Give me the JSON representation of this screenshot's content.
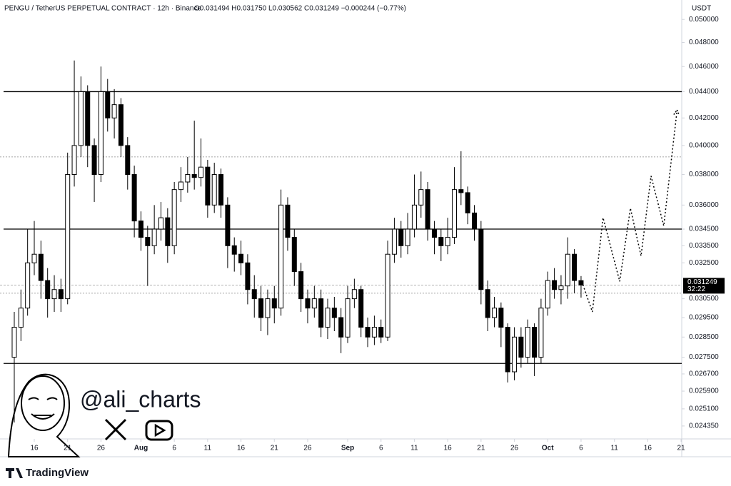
{
  "chart_data": {
    "type": "candlestick",
    "title": "PENGU / TetherUS PERPETUAL CONTRACT · 12h · Binance",
    "ohlc_text": "O0.031494 H0.031750 L0.030562 C0.031249 −0.000244 (−0.77%)",
    "currency": "USDT",
    "log_scale": true,
    "x": [
      13,
      14,
      15,
      16,
      17,
      18,
      19,
      20,
      21,
      22,
      23,
      24,
      25,
      26,
      27,
      28,
      29,
      30,
      31,
      32,
      33,
      34,
      35,
      36,
      37,
      38,
      39,
      40,
      41,
      42,
      43,
      44,
      45,
      46,
      47,
      48,
      49,
      50,
      51,
      52,
      53,
      54,
      55,
      56,
      57,
      58,
      59,
      60,
      61,
      62,
      63,
      64,
      65,
      66,
      67,
      68,
      69,
      70,
      71,
      72,
      73,
      74,
      75,
      76,
      77,
      78,
      79,
      80,
      81,
      82,
      83,
      84,
      85,
      86,
      87,
      88,
      89,
      90,
      91,
      92,
      93,
      94,
      95,
      96,
      97,
      98
    ],
    "open": [
      0.0275,
      0.029,
      0.03,
      0.0325,
      0.033,
      0.0315,
      0.0305,
      0.031,
      0.0305,
      0.038,
      0.04,
      0.044,
      0.04,
      0.038,
      0.044,
      0.042,
      0.043,
      0.04,
      0.038,
      0.035,
      0.034,
      0.0335,
      0.0345,
      0.0352,
      0.0335,
      0.037,
      0.0375,
      0.038,
      0.0378,
      0.0385,
      0.036,
      0.038,
      0.036,
      0.0335,
      0.033,
      0.0325,
      0.031,
      0.0305,
      0.0295,
      0.0305,
      0.03,
      0.036,
      0.034,
      0.032,
      0.0305,
      0.03,
      0.0305,
      0.029,
      0.03,
      0.0295,
      0.0285,
      0.0305,
      0.031,
      0.029,
      0.0285,
      0.029,
      0.0285,
      0.033,
      0.0345,
      0.0335,
      0.0345,
      0.036,
      0.037,
      0.0345,
      0.034,
      0.0335,
      0.034,
      0.037,
      0.0368,
      0.0355,
      0.0345,
      0.031,
      0.0295,
      0.03,
      0.029,
      0.0268,
      0.0285,
      0.0275,
      0.029,
      0.0275,
      0.03,
      0.0315,
      0.031,
      0.0312,
      0.033,
      0.031494
    ],
    "high": [
      0.0298,
      0.031,
      0.0345,
      0.035,
      0.0338,
      0.0322,
      0.0318,
      0.0316,
      0.0395,
      0.0465,
      0.0452,
      0.0445,
      0.0405,
      0.046,
      0.045,
      0.0442,
      0.0435,
      0.0406,
      0.0386,
      0.0356,
      0.0347,
      0.036,
      0.0362,
      0.0358,
      0.0375,
      0.0385,
      0.0392,
      0.0418,
      0.0405,
      0.039,
      0.0388,
      0.0384,
      0.0365,
      0.034,
      0.0338,
      0.033,
      0.0318,
      0.0312,
      0.031,
      0.0312,
      0.037,
      0.0365,
      0.0345,
      0.0325,
      0.031,
      0.0312,
      0.031,
      0.0305,
      0.0306,
      0.03,
      0.0312,
      0.0316,
      0.0312,
      0.0295,
      0.0296,
      0.0294,
      0.0338,
      0.0352,
      0.035,
      0.0355,
      0.038,
      0.0382,
      0.0375,
      0.035,
      0.0345,
      0.0352,
      0.0385,
      0.0396,
      0.0372,
      0.036,
      0.035,
      0.0315,
      0.0306,
      0.0303,
      0.0292,
      0.029,
      0.029,
      0.0294,
      0.0292,
      0.0305,
      0.032,
      0.0322,
      0.0318,
      0.034,
      0.0333,
      0.03175
    ],
    "low": [
      0.0245,
      0.0283,
      0.0296,
      0.0318,
      0.0305,
      0.0295,
      0.0298,
      0.0298,
      0.0302,
      0.0372,
      0.0392,
      0.0385,
      0.0362,
      0.0375,
      0.041,
      0.0405,
      0.0392,
      0.037,
      0.034,
      0.0332,
      0.0312,
      0.033,
      0.0338,
      0.0325,
      0.033,
      0.0362,
      0.0368,
      0.037,
      0.0372,
      0.0352,
      0.0355,
      0.0352,
      0.0322,
      0.032,
      0.0318,
      0.0302,
      0.0295,
      0.0288,
      0.0286,
      0.0292,
      0.0296,
      0.0332,
      0.0312,
      0.0298,
      0.0292,
      0.0295,
      0.0285,
      0.0284,
      0.0288,
      0.0277,
      0.0282,
      0.03,
      0.0285,
      0.028,
      0.0281,
      0.0282,
      0.0283,
      0.0325,
      0.0328,
      0.033,
      0.034,
      0.0352,
      0.0338,
      0.033,
      0.0326,
      0.033,
      0.0336,
      0.036,
      0.0348,
      0.0338,
      0.0302,
      0.0288,
      0.029,
      0.028,
      0.0263,
      0.0264,
      0.027,
      0.0272,
      0.0266,
      0.0272,
      0.0296,
      0.0305,
      0.0302,
      0.0305,
      0.0308,
      0.030562
    ],
    "close": [
      0.029,
      0.03,
      0.0325,
      0.033,
      0.0315,
      0.0305,
      0.031,
      0.0305,
      0.038,
      0.04,
      0.044,
      0.04,
      0.038,
      0.044,
      0.042,
      0.043,
      0.04,
      0.038,
      0.035,
      0.034,
      0.0335,
      0.0345,
      0.0352,
      0.0335,
      0.037,
      0.0375,
      0.038,
      0.0378,
      0.0385,
      0.036,
      0.038,
      0.036,
      0.0335,
      0.033,
      0.0325,
      0.031,
      0.0305,
      0.0295,
      0.0305,
      0.03,
      0.036,
      0.034,
      0.032,
      0.0305,
      0.03,
      0.0305,
      0.029,
      0.03,
      0.0295,
      0.0285,
      0.0305,
      0.031,
      0.029,
      0.0285,
      0.029,
      0.0285,
      0.033,
      0.0345,
      0.0335,
      0.0345,
      0.036,
      0.037,
      0.0345,
      0.034,
      0.0335,
      0.034,
      0.037,
      0.0368,
      0.0355,
      0.0345,
      0.031,
      0.0295,
      0.03,
      0.029,
      0.0268,
      0.0285,
      0.0275,
      0.029,
      0.0275,
      0.03,
      0.0315,
      0.031,
      0.0312,
      0.033,
      0.0315,
      0.031249
    ],
    "levels": [
      0.044,
      0.0345,
      0.0272
    ],
    "dotted_levels": [
      0.0392,
      0.0308
    ],
    "last_price": {
      "value": 0.031249,
      "label": "0.031249",
      "countdown": "32:22"
    },
    "projection": {
      "x": [
        98.1,
        99.7,
        101.3,
        103.8,
        105.4,
        107.0,
        108.5,
        110.4,
        112.4
      ],
      "values": [
        0.03145,
        0.0298,
        0.0352,
        0.03145,
        0.0358,
        0.0329,
        0.0379,
        0.0347,
        0.0426
      ]
    },
    "xlim": [
      10.86,
      113.1
    ],
    "xticks": [
      {
        "value": 16,
        "label": "16"
      },
      {
        "value": 21,
        "label": "21"
      },
      {
        "value": 26,
        "label": "26"
      },
      {
        "value": 32,
        "label": "Aug"
      },
      {
        "value": 37,
        "label": "6"
      },
      {
        "value": 42,
        "label": "11"
      },
      {
        "value": 47,
        "label": "16"
      },
      {
        "value": 52,
        "label": "21"
      },
      {
        "value": 57,
        "label": "26"
      },
      {
        "value": 63,
        "label": "Sep"
      },
      {
        "value": 68,
        "label": "6"
      },
      {
        "value": 73,
        "label": "11"
      },
      {
        "value": 78,
        "label": "16"
      },
      {
        "value": 83,
        "label": "21"
      },
      {
        "value": 88,
        "label": "26"
      },
      {
        "value": 93,
        "label": "Oct"
      },
      {
        "value": 98,
        "label": "6"
      },
      {
        "value": 103,
        "label": "11"
      },
      {
        "value": 108,
        "label": "16"
      },
      {
        "value": 113,
        "label": "21"
      }
    ],
    "ylim": [
      0.0238,
      0.0511
    ],
    "yticks": [
      {
        "value": 0.05,
        "label": "0.050000"
      },
      {
        "value": 0.048,
        "label": "0.048000"
      },
      {
        "value": 0.046,
        "label": "0.046000"
      },
      {
        "value": 0.044,
        "label": "0.044000"
      },
      {
        "value": 0.042,
        "label": "0.042000"
      },
      {
        "value": 0.04,
        "label": "0.040000"
      },
      {
        "value": 0.038,
        "label": "0.038000"
      },
      {
        "value": 0.036,
        "label": "0.036000"
      },
      {
        "value": 0.0345,
        "label": "0.034500"
      },
      {
        "value": 0.0335,
        "label": "0.033500"
      },
      {
        "value": 0.0325,
        "label": "0.032500"
      },
      {
        "value": 0.0305,
        "label": "0.030500"
      },
      {
        "value": 0.0295,
        "label": "0.029500"
      },
      {
        "value": 0.0285,
        "label": "0.028500"
      },
      {
        "value": 0.0275,
        "label": "0.027500"
      },
      {
        "value": 0.0267,
        "label": "0.026700"
      },
      {
        "value": 0.0259,
        "label": "0.025900"
      },
      {
        "value": 0.0251,
        "label": "0.025100"
      },
      {
        "value": 0.02435,
        "label": "0.024350"
      }
    ],
    "watermark": "@ali_charts",
    "brand": "TradingView"
  }
}
